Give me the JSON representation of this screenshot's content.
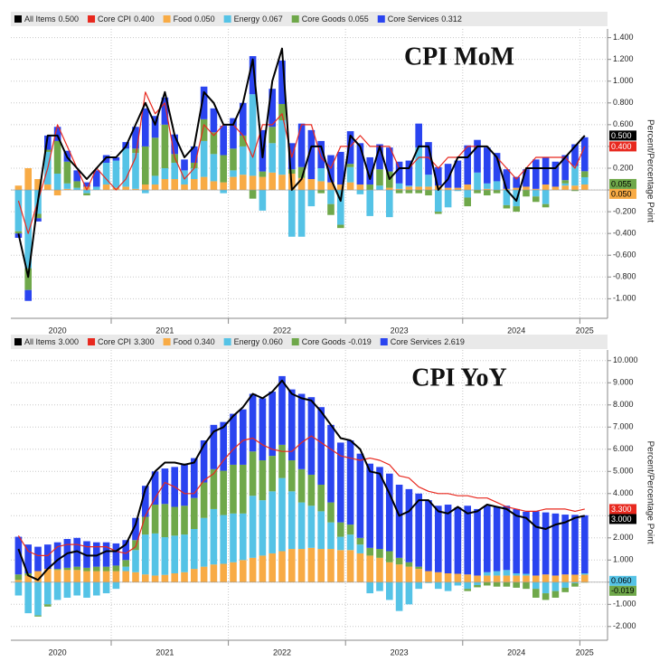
{
  "chart_data": [
    {
      "type": "bar",
      "title": "CPI MoM",
      "y_label": "Percent/Percentage Point",
      "grid": true,
      "categories": [
        null,
        null,
        null,
        null,
        "2020",
        null,
        null,
        null,
        null,
        null,
        null,
        null,
        null,
        null,
        null,
        "2021",
        null,
        null,
        null,
        null,
        null,
        null,
        null,
        null,
        null,
        null,
        null,
        "2022",
        null,
        null,
        null,
        null,
        null,
        null,
        null,
        null,
        null,
        null,
        null,
        "2023",
        null,
        null,
        null,
        null,
        null,
        null,
        null,
        null,
        null,
        null,
        null,
        "2024",
        null,
        null,
        null,
        null,
        null,
        null,
        "2025"
      ],
      "ylim": [
        -1.18,
        1.48
      ],
      "yticks": [
        {
          "value": 1.4,
          "label": "1.400"
        },
        {
          "value": 1.2,
          "label": "1.200"
        },
        {
          "value": 1.0,
          "label": "1.000"
        },
        {
          "value": 0.8,
          "label": "0.800"
        },
        {
          "value": 0.6,
          "label": "0.600"
        },
        {
          "value": 0.4,
          "label": "0.400"
        },
        {
          "value": 0.2,
          "label": "0.200"
        },
        {
          "value": 0,
          "label": "0.000"
        },
        {
          "value": -0.2,
          "label": "-0.200"
        },
        {
          "value": -0.4,
          "label": "-0.400"
        },
        {
          "value": -0.6,
          "label": "-0.600"
        },
        {
          "value": -0.8,
          "label": "-0.800"
        },
        {
          "value": -1.0,
          "label": "-1.000"
        }
      ],
      "series": [
        {
          "name": "All Items",
          "legend_value": "0.500",
          "type": "line",
          "color": "#000000",
          "badge": true,
          "values": [
            -0.4,
            -0.8,
            -0.1,
            0.5,
            0.5,
            0.3,
            0.2,
            0.1,
            0.2,
            0.3,
            0.3,
            0.4,
            0.6,
            0.8,
            0.6,
            0.9,
            0.5,
            0.3,
            0.4,
            0.9,
            0.8,
            0.6,
            0.6,
            0.8,
            1.2,
            0.3,
            1.0,
            1.3,
            0,
            0.1,
            0.4,
            0.4,
            0.1,
            -0.1,
            0.5,
            0.4,
            0.1,
            0.4,
            0.1,
            0.2,
            0.2,
            0.4,
            0.4,
            0,
            0.1,
            0.3,
            0.3,
            0.4,
            0.4,
            0.3,
            0,
            -0.1,
            0.2,
            0.2,
            0.2,
            0.2,
            0.3,
            0.4,
            0.5
          ]
        },
        {
          "name": "Core CPI",
          "legend_value": "0.400",
          "type": "line",
          "color": "#e8281e",
          "badge": true,
          "values": [
            -0.1,
            -0.4,
            -0.1,
            0.2,
            0.6,
            0.4,
            0.2,
            0,
            0.2,
            0.1,
            0,
            0.1,
            0.3,
            0.9,
            0.7,
            0.8,
            0.3,
            0.1,
            0.2,
            0.6,
            0.5,
            0.6,
            0.6,
            0.5,
            0.3,
            0.6,
            0.6,
            0.7,
            0.3,
            0.6,
            0.6,
            0.3,
            0.2,
            0.4,
            0.4,
            0.5,
            0.4,
            0.4,
            0.4,
            0.2,
            0.2,
            0.3,
            0.3,
            0.2,
            0.3,
            0.3,
            0.4,
            0.4,
            0.4,
            0.3,
            0.2,
            0.1,
            0.2,
            0.3,
            0.3,
            0.3,
            0.3,
            0.2,
            0.4
          ]
        },
        {
          "name": "Food",
          "legend_value": "0.050",
          "type": "bar",
          "color": "#f8ab45",
          "badge": true,
          "values": [
            0.04,
            0.2,
            0.1,
            0.05,
            -0.05,
            0.01,
            0,
            0.03,
            0,
            0.05,
            0.02,
            0.03,
            0.01,
            0.05,
            0.05,
            0.1,
            0.1,
            0.05,
            0.1,
            0.12,
            0.08,
            0.07,
            0.12,
            0.14,
            0.13,
            0.12,
            0.16,
            0.14,
            0.15,
            0.11,
            0.1,
            0.08,
            0.07,
            0.05,
            0.07,
            0.05,
            0,
            0,
            0.02,
            0.01,
            0.03,
            0.03,
            0.03,
            0.04,
            0.02,
            0.02,
            0.05,
            0,
            0.01,
            0,
            0.01,
            0.02,
            0.03,
            0.01,
            0.05,
            0.03,
            0.04,
            0.04,
            0.05
          ]
        },
        {
          "name": "Energy",
          "legend_value": "0.067",
          "type": "bar",
          "color": "#55c3e6",
          "badge": false,
          "values": [
            -0.38,
            -0.72,
            -0.22,
            0.3,
            0.15,
            0.05,
            0.02,
            -0.03,
            0.03,
            0.2,
            0.25,
            0.35,
            0.33,
            -0.03,
            0.08,
            0.1,
            0.15,
            0.13,
            0.1,
            0.33,
            0.25,
            -0.03,
            0.06,
            0.26,
            0.75,
            -0.19,
            0.27,
            0.5,
            -0.43,
            -0.43,
            -0.15,
            0.12,
            -0.13,
            -0.32,
            0.14,
            -0.04,
            -0.24,
            0.04,
            -0.25,
            0.05,
            0.01,
            0.36,
            0.11,
            -0.2,
            -0.16,
            -0.01,
            -0.07,
            0.16,
            0.05,
            0.08,
            -0.14,
            -0.15,
            0,
            -0.06,
            -0.13,
            0,
            0.02,
            0.18,
            0.067
          ]
        },
        {
          "name": "Core Goods",
          "legend_value": "0.055",
          "type": "bar",
          "color": "#6fa84a",
          "badge": true,
          "values": [
            -0.02,
            -0.2,
            -0.04,
            0.02,
            0.3,
            0.2,
            0.06,
            -0.02,
            0,
            0,
            0,
            0,
            0.04,
            0.35,
            0.35,
            0.4,
            0.08,
            0,
            0.05,
            0.2,
            0.2,
            0.25,
            0.2,
            0.1,
            -0.08,
            0.05,
            0.15,
            0.15,
            0.04,
            0.1,
            0,
            -0.03,
            -0.1,
            -0.03,
            0.03,
            0,
            0.05,
            0.15,
            0.15,
            -0.03,
            -0.03,
            -0.03,
            -0.05,
            -0.02,
            0,
            0,
            -0.08,
            -0.03,
            -0.05,
            -0.03,
            -0.03,
            -0.05,
            -0.06,
            -0.05,
            -0.03,
            0,
            0.03,
            -0.01,
            0.055
          ]
        },
        {
          "name": "Core Services",
          "legend_value": "0.312",
          "type": "bar",
          "color": "#2a44f0",
          "badge": false,
          "values": [
            -0.04,
            -0.1,
            -0.03,
            0.13,
            0.13,
            0.1,
            0.1,
            0.04,
            0.15,
            0.07,
            0.03,
            0.06,
            0.2,
            0.35,
            0.2,
            0.25,
            0.18,
            0.1,
            0.15,
            0.3,
            0.22,
            0.27,
            0.28,
            0.3,
            0.35,
            0.38,
            0.35,
            0.4,
            0.24,
            0.4,
            0.45,
            0.25,
            0.25,
            0.3,
            0.3,
            0.38,
            0.25,
            0.23,
            0.22,
            0.2,
            0.23,
            0.22,
            0.3,
            0.17,
            0.22,
            0.25,
            0.36,
            0.3,
            0.33,
            0.26,
            0.18,
            0.1,
            0.16,
            0.27,
            0.25,
            0.23,
            0.23,
            0.2,
            0.312
          ]
        }
      ]
    },
    {
      "type": "bar",
      "title": "CPI YoY",
      "y_label": "Percent/Percentage Point",
      "grid": true,
      "categories": [
        null,
        null,
        null,
        null,
        "2020",
        null,
        null,
        null,
        null,
        null,
        null,
        null,
        null,
        null,
        null,
        "2021",
        null,
        null,
        null,
        null,
        null,
        null,
        null,
        null,
        null,
        null,
        null,
        "2022",
        null,
        null,
        null,
        null,
        null,
        null,
        null,
        null,
        null,
        null,
        null,
        "2023",
        null,
        null,
        null,
        null,
        null,
        null,
        null,
        null,
        null,
        null,
        null,
        "2024",
        null,
        null,
        null,
        null,
        null,
        null,
        "2025"
      ],
      "ylim": [
        -2.62,
        10.48
      ],
      "yticks": [
        {
          "value": 10,
          "label": "10.000"
        },
        {
          "value": 9,
          "label": "9.000"
        },
        {
          "value": 8,
          "label": "8.000"
        },
        {
          "value": 7,
          "label": "7.000"
        },
        {
          "value": 6,
          "label": "6.000"
        },
        {
          "value": 5,
          "label": "5.000"
        },
        {
          "value": 4,
          "label": "4.000"
        },
        {
          "value": 3,
          "label": "3.000"
        },
        {
          "value": 2,
          "label": "2.000"
        },
        {
          "value": 1,
          "label": "1.000"
        },
        {
          "value": 0,
          "label": "0.000"
        },
        {
          "value": -1,
          "label": "-1.000"
        },
        {
          "value": -2,
          "label": "-2.000"
        }
      ],
      "series": [
        {
          "name": "All Items",
          "legend_value": "3.000",
          "type": "line",
          "color": "#000000",
          "badge": true,
          "values": [
            1.5,
            0.3,
            0.1,
            0.6,
            1.0,
            1.3,
            1.4,
            1.2,
            1.2,
            1.4,
            1.4,
            1.7,
            2.6,
            4.2,
            5.0,
            5.4,
            5.4,
            5.3,
            5.4,
            6.2,
            6.8,
            7.0,
            7.5,
            7.9,
            8.5,
            8.3,
            8.6,
            9.1,
            8.5,
            8.3,
            8.2,
            7.7,
            7.1,
            6.5,
            6.4,
            6.0,
            5.0,
            4.9,
            4.0,
            3.0,
            3.2,
            3.7,
            3.7,
            3.2,
            3.1,
            3.4,
            3.1,
            3.2,
            3.5,
            3.4,
            3.3,
            3.0,
            2.9,
            2.5,
            2.4,
            2.6,
            2.7,
            2.9,
            3.0
          ]
        },
        {
          "name": "Core CPI",
          "legend_value": "3.300",
          "type": "line",
          "color": "#e8281e",
          "badge": true,
          "values": [
            2.1,
            1.4,
            1.2,
            1.2,
            1.6,
            1.7,
            1.7,
            1.6,
            1.6,
            1.6,
            1.4,
            1.3,
            1.6,
            3.0,
            3.8,
            4.5,
            4.3,
            4.0,
            4.0,
            4.6,
            4.9,
            5.5,
            6.0,
            6.4,
            6.5,
            6.2,
            6.0,
            5.9,
            5.9,
            6.3,
            6.6,
            6.3,
            6.0,
            5.7,
            5.6,
            5.5,
            5.6,
            5.5,
            5.3,
            4.8,
            4.7,
            4.3,
            4.1,
            4.0,
            4.0,
            3.9,
            3.9,
            3.8,
            3.8,
            3.6,
            3.4,
            3.3,
            3.2,
            3.2,
            3.3,
            3.3,
            3.3,
            3.2,
            3.3
          ]
        },
        {
          "name": "Food",
          "legend_value": "0.340",
          "type": "bar",
          "color": "#f8ab45",
          "badge": false,
          "values": [
            0.1,
            0.3,
            0.5,
            0.6,
            0.55,
            0.55,
            0.55,
            0.5,
            0.5,
            0.5,
            0.5,
            0.5,
            0.45,
            0.35,
            0.3,
            0.33,
            0.4,
            0.45,
            0.6,
            0.7,
            0.8,
            0.83,
            0.9,
            1.0,
            1.1,
            1.2,
            1.3,
            1.4,
            1.5,
            1.5,
            1.55,
            1.5,
            1.5,
            1.45,
            1.45,
            1.3,
            1.2,
            1.1,
            0.9,
            0.8,
            0.7,
            0.6,
            0.5,
            0.45,
            0.4,
            0.38,
            0.35,
            0.3,
            0.3,
            0.3,
            0.3,
            0.3,
            0.3,
            0.3,
            0.35,
            0.3,
            0.35,
            0.34,
            0.34
          ]
        },
        {
          "name": "Energy",
          "legend_value": "0.060",
          "type": "bar",
          "color": "#55c3e6",
          "badge": true,
          "values": [
            -0.6,
            -1.4,
            -1.5,
            -1.0,
            -0.8,
            -0.7,
            -0.6,
            -0.7,
            -0.6,
            -0.5,
            -0.3,
            0.2,
            1.0,
            1.8,
            1.9,
            1.7,
            1.7,
            1.7,
            1.8,
            2.2,
            2.5,
            2.2,
            2.2,
            2.1,
            2.8,
            2.5,
            2.8,
            3.3,
            2.6,
            2.1,
            1.9,
            1.7,
            1.2,
            0.6,
            0.7,
            0.4,
            -0.5,
            -0.4,
            -0.8,
            -1.3,
            -1.0,
            -0.3,
            -0.04,
            -0.3,
            -0.4,
            -0.15,
            -0.3,
            -0.13,
            0.15,
            0.2,
            0.25,
            0.1,
            0.08,
            -0.3,
            -0.5,
            -0.4,
            -0.25,
            -0.05,
            0.06
          ]
        },
        {
          "name": "Core Goods",
          "legend_value": "-0.019",
          "type": "bar",
          "color": "#6fa84a",
          "badge": true,
          "values": [
            0.25,
            0.1,
            -0.05,
            -0.1,
            0.05,
            0.1,
            0.15,
            0.15,
            0.2,
            0.2,
            0.25,
            0.3,
            0.45,
            0.8,
            1.3,
            1.5,
            1.3,
            1.3,
            1.4,
            1.6,
            1.8,
            2.0,
            2.2,
            2.2,
            2.0,
            1.8,
            1.6,
            1.5,
            1.4,
            1.5,
            1.4,
            1.2,
            0.9,
            0.65,
            0.45,
            0.3,
            0.35,
            0.4,
            0.5,
            0.3,
            0.2,
            0.1,
            0,
            0,
            0,
            0,
            -0.1,
            -0.1,
            -0.15,
            -0.2,
            -0.2,
            -0.25,
            -0.3,
            -0.4,
            -0.3,
            -0.3,
            -0.2,
            -0.15,
            -0.019
          ]
        },
        {
          "name": "Core Services",
          "legend_value": "2.619",
          "type": "bar",
          "color": "#2a44f0",
          "badge": false,
          "values": [
            1.7,
            1.3,
            1.1,
            1.1,
            1.2,
            1.3,
            1.3,
            1.2,
            1.1,
            1.1,
            1.0,
            0.9,
            1.0,
            1.4,
            1.5,
            1.6,
            1.8,
            1.9,
            1.8,
            1.9,
            2.0,
            2.2,
            2.3,
            2.5,
            2.6,
            2.8,
            2.9,
            3.1,
            3.2,
            3.4,
            3.5,
            3.5,
            3.5,
            3.6,
            3.8,
            3.8,
            3.8,
            3.7,
            3.5,
            3.3,
            3.3,
            3.3,
            3.2,
            3.0,
            3.1,
            3.0,
            3.1,
            3.0,
            3.0,
            2.9,
            2.9,
            2.9,
            2.8,
            2.9,
            2.8,
            2.8,
            2.7,
            2.7,
            2.619
          ]
        }
      ]
    }
  ]
}
